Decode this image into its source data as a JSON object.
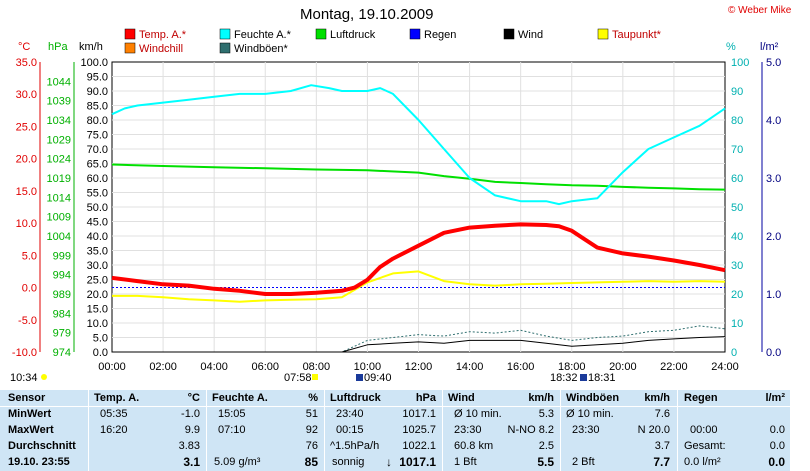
{
  "title": "Montag, 19.10.2009",
  "copyright": "© Weber Mike",
  "units": {
    "celsius": "°C",
    "hpa": "hPa",
    "kmh": "km/h",
    "pct": "%",
    "lm2": "l/m²"
  },
  "legend": [
    {
      "label": "Temp. A.*",
      "color": "#ff0000"
    },
    {
      "label": "Windchill",
      "color": "#ff8000"
    },
    {
      "label": "Feuchte A.*",
      "color": "#00ffff"
    },
    {
      "label": "Windböen*",
      "color": "#2f6f6f"
    },
    {
      "label": "Luftdruck",
      "color": "#00e000"
    },
    {
      "label": "Regen",
      "color": "#0000ff"
    },
    {
      "label": "Wind",
      "color": "#000000"
    },
    {
      "label": "Taupunkt*",
      "color": "#ffff00"
    }
  ],
  "time_markers": [
    "10:34",
    "07:58",
    "09:40",
    "18:32",
    "18:31"
  ],
  "chart_data": {
    "type": "line",
    "x_label": "",
    "x_ticks": [
      "00:00",
      "02:00",
      "04:00",
      "06:00",
      "08:00",
      "10:00",
      "12:00",
      "14:00",
      "16:00",
      "18:00",
      "20:00",
      "22:00",
      "24:00"
    ],
    "axes": {
      "temperature": {
        "unit": "°C",
        "range": [
          -10,
          35
        ],
        "ticks": [
          "35.0",
          "30.0",
          "25.0",
          "20.0",
          "15.0",
          "10.0",
          "5.0",
          "0.0",
          "-5.0",
          "-10.0"
        ]
      },
      "pressure": {
        "unit": "hPa",
        "range": [
          974,
          1049
        ],
        "ticks": [
          "1044",
          "1039",
          "1034",
          "1029",
          "1024",
          "1019",
          "1014",
          "1009",
          "1004",
          "999",
          "994",
          "989",
          "984",
          "979",
          "974"
        ]
      },
      "wind": {
        "unit": "km/h",
        "range": [
          0,
          100
        ],
        "ticks": [
          "100.0",
          "95.0",
          "90.0",
          "85.0",
          "80.0",
          "75.0",
          "70.0",
          "65.0",
          "60.0",
          "55.0",
          "50.0",
          "45.0",
          "40.0",
          "35.0",
          "30.0",
          "25.0",
          "20.0",
          "15.0",
          "10.0",
          "5.0",
          "0.0"
        ]
      },
      "humidity": {
        "unit": "%",
        "range": [
          0,
          100
        ],
        "ticks": [
          "100",
          "90",
          "80",
          "70",
          "60",
          "50",
          "40",
          "30",
          "20",
          "10",
          "0"
        ]
      },
      "rain": {
        "unit": "l/m²",
        "range": [
          0,
          5
        ],
        "ticks": [
          "5.0",
          "4.0",
          "3.0",
          "2.0",
          "1.0",
          "0.0"
        ]
      }
    },
    "series": [
      {
        "name": "Temp. A.*",
        "axis": "temperature",
        "color": "#ff0000",
        "x": [
          0,
          1,
          2,
          3,
          4,
          5,
          6,
          7,
          8,
          9,
          9.5,
          10,
          10.5,
          11,
          12,
          13,
          14,
          15,
          16,
          17,
          17.5,
          18,
          18.5,
          19,
          20,
          21,
          22,
          23,
          24
        ],
        "y": [
          1.5,
          1.0,
          0.5,
          0.3,
          -0.2,
          -0.5,
          -1.0,
          -1.0,
          -0.8,
          -0.5,
          0.0,
          1.2,
          3.2,
          4.5,
          6.5,
          8.5,
          9.3,
          9.6,
          9.8,
          9.7,
          9.5,
          8.8,
          7.5,
          6.2,
          5.3,
          4.8,
          4.2,
          3.5,
          2.7
        ]
      },
      {
        "name": "Feuchte A.*",
        "axis": "humidity",
        "color": "#00ffff",
        "x": [
          0,
          0.5,
          1,
          2,
          3,
          4,
          5,
          6,
          7,
          7.8,
          8.5,
          9,
          10,
          10.5,
          11,
          12,
          13,
          14,
          15,
          16,
          17,
          17.5,
          18,
          19,
          20,
          21,
          22,
          23,
          24
        ],
        "y": [
          82,
          84,
          85,
          86,
          87,
          88,
          89,
          89,
          90,
          92,
          91,
          90,
          90,
          91,
          89,
          80,
          70,
          60,
          54,
          52,
          52,
          51,
          52,
          53,
          62,
          70,
          74,
          78,
          84
        ]
      },
      {
        "name": "Luftdruck",
        "axis": "pressure",
        "color": "#00e000",
        "x": [
          0,
          2,
          4,
          6,
          8,
          10,
          12,
          13,
          14,
          15,
          16,
          17,
          18,
          19,
          20,
          21,
          22,
          23,
          24
        ],
        "y": [
          1022.5,
          1022.1,
          1021.8,
          1021.5,
          1021.2,
          1021.0,
          1020.4,
          1019.5,
          1018.8,
          1018.0,
          1017.7,
          1017.4,
          1017.1,
          1017.0,
          1016.7,
          1016.5,
          1016.3,
          1016.1,
          1016.0
        ]
      },
      {
        "name": "Taupunkt*",
        "axis": "temperature",
        "color": "#ffff00",
        "x": [
          0,
          1,
          2,
          3,
          4,
          5,
          6,
          7,
          8,
          9,
          10,
          11,
          12,
          13,
          14,
          15,
          16,
          17,
          18,
          19,
          20,
          21,
          22,
          23,
          24
        ],
        "y": [
          -1.3,
          -1.3,
          -1.5,
          -1.8,
          -2.0,
          -2.2,
          -2.0,
          -1.9,
          -1.8,
          -1.5,
          0.8,
          2.2,
          2.5,
          1.0,
          0.5,
          0.3,
          0.5,
          0.6,
          0.7,
          0.8,
          0.9,
          1.0,
          0.9,
          1.0,
          0.9
        ]
      },
      {
        "name": "Wind",
        "axis": "wind",
        "color": "#000000",
        "x": [
          0,
          9,
          10,
          11,
          12,
          13,
          14,
          15,
          16,
          17,
          18,
          19,
          20,
          21,
          22,
          23,
          24
        ],
        "y": [
          0,
          0,
          2.5,
          3,
          3.5,
          3,
          4,
          4,
          4,
          3,
          2,
          2.5,
          3,
          4,
          4.5,
          5,
          5.3
        ]
      },
      {
        "name": "Windböen*",
        "axis": "wind",
        "color": "#2f6f6f",
        "x": [
          0,
          9,
          10,
          11,
          12,
          13,
          14,
          15,
          16,
          17,
          18,
          19,
          20,
          21,
          22,
          23,
          24
        ],
        "y": [
          0,
          0,
          4,
          5,
          6,
          5.5,
          7,
          6.5,
          7.5,
          5.5,
          4,
          5,
          5.5,
          7,
          7.5,
          9,
          8
        ]
      }
    ],
    "reference_line": {
      "axis": "temperature",
      "value": 0.0,
      "color": "#0000ff"
    }
  },
  "table": {
    "row_labels": [
      "Sensor",
      "MinWert",
      "MaxWert",
      "Durchschnitt",
      "19.10. 23:55"
    ],
    "temp": {
      "head": "Temp. A.",
      "unit": "°C",
      "min_time": "05:35",
      "min": "-1.0",
      "max_time": "16:20",
      "max": "9.9",
      "avg": "3.83",
      "now": "3.1"
    },
    "feuchte": {
      "head": "Feuchte A.",
      "unit": "%",
      "min_time": "15:05",
      "min": "51",
      "max_time": "07:10",
      "max": "92",
      "avg": "76",
      "now_extra": "5.09 g/m³",
      "now": "85"
    },
    "luftdruck": {
      "head": "Luftdruck",
      "unit": "hPa",
      "min_time": "23:40",
      "min": "1017.1",
      "max_time": "00:15",
      "max": "1025.7",
      "avg_label": "^1.5hPa/h",
      "avg": "1022.1",
      "now_label": "sonnig",
      "now": "1017.1"
    },
    "wind": {
      "head": "Wind",
      "unit": "km/h",
      "r1_label": "Ø 10 min.",
      "r1": "5.3",
      "r2_time": "23:30",
      "r2": "N-NO 8.2",
      "r3_label": "60.8 km",
      "r3": "2.5",
      "r4_label": "1 Bft",
      "r4": "5.5"
    },
    "boeen": {
      "head": "Windböen",
      "unit": "km/h",
      "r1_label": "Ø 10 min.",
      "r1": "7.6",
      "r2_time": "23:30",
      "r2": "N 20.0",
      "r3": "3.7",
      "r4_label": "2 Bft",
      "r4": "7.7"
    },
    "regen": {
      "head": "Regen",
      "unit": "l/m²",
      "r2_time": "00:00",
      "r2": "0.0",
      "r3_label": "Gesamt:",
      "r3": "0.0",
      "r4_label": "0.0 l/m²",
      "r4": "0.0"
    }
  }
}
